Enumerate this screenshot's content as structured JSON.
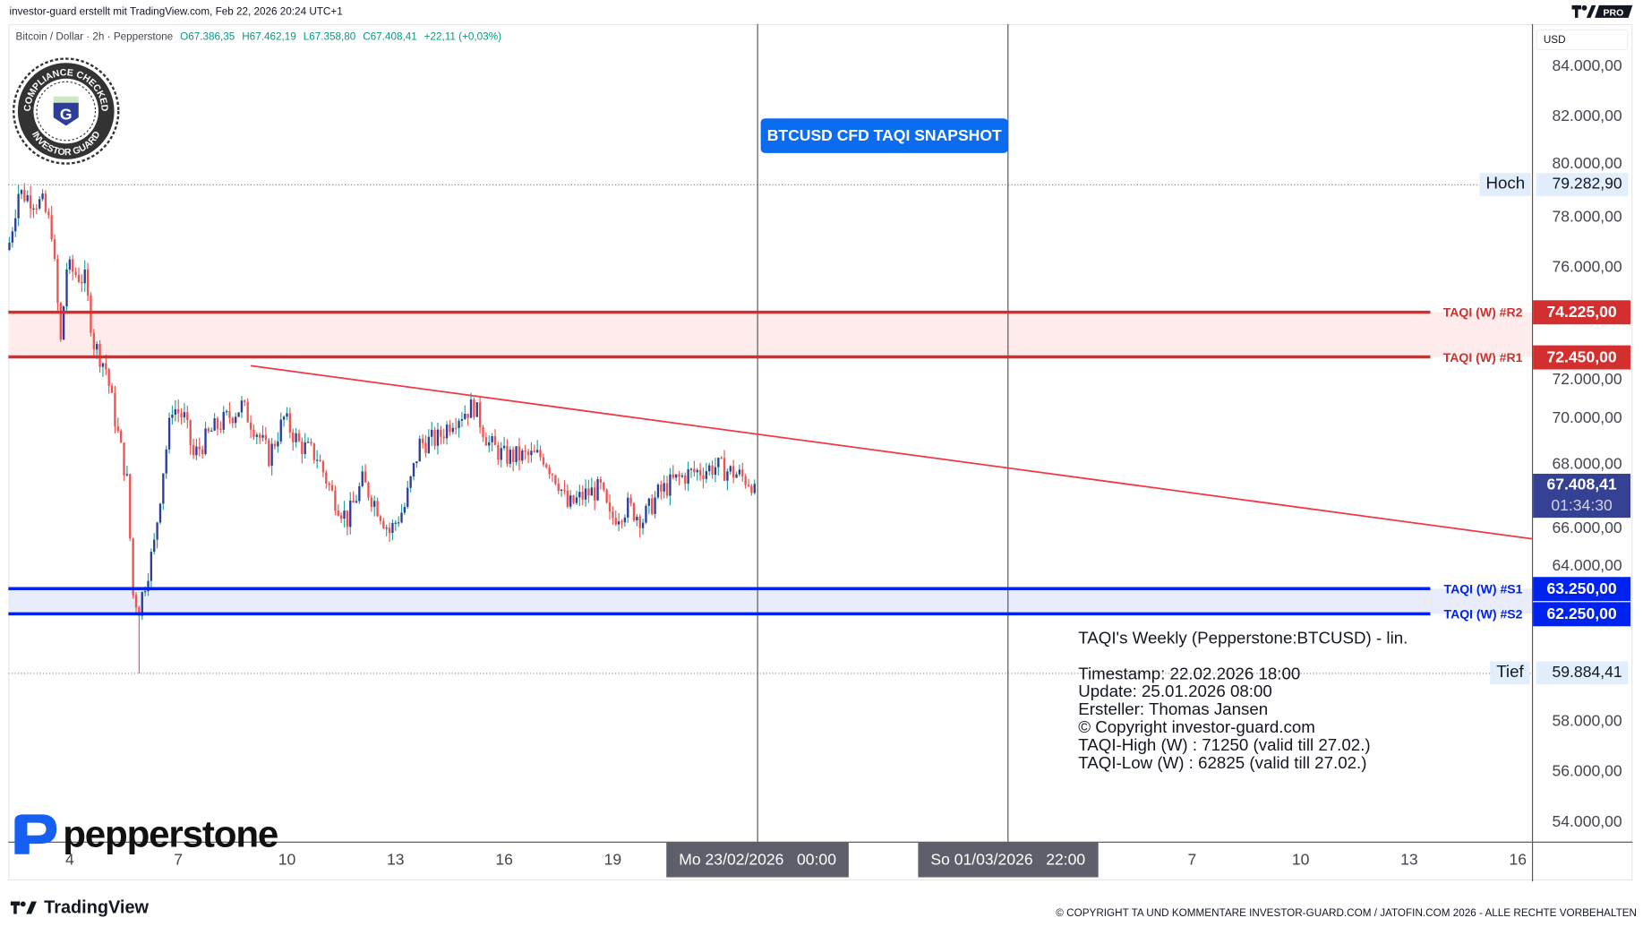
{
  "header": {
    "caption": "investor-guard erstellt mit TradingView.com, Feb 22, 2026 20:24 UTC+1",
    "badge": "PRO"
  },
  "legend": {
    "symbol": "Bitcoin / Dollar · 2h · Pepperstone",
    "open": "O67.386,35",
    "high": "H67.462,19",
    "low": "L67.358,80",
    "close": "C67.408,41",
    "change": "+22,11 (+0,03%)"
  },
  "currency": "USD",
  "compliance_badge": {
    "top_text": "COMPLIANCE CHECKED",
    "bottom_text": "INVESTOR GUARD",
    "letter": "G"
  },
  "snapshot_label": "BTCUSD CFD TAQI SNAPSHOT",
  "levels": {
    "r2": {
      "label": "TAQI (W) #R2",
      "value": "74.225,00",
      "price": 74225,
      "color": "#d32f2f"
    },
    "r1": {
      "label": "TAQI (W) #R1",
      "value": "72.450,00",
      "price": 72450,
      "color": "#d32f2f"
    },
    "s1": {
      "label": "TAQI (W) #S1",
      "value": "63.250,00",
      "price": 63250,
      "color": "#0022ee"
    },
    "s2": {
      "label": "TAQI (W) #S2",
      "value": "62.250,00",
      "price": 62250,
      "color": "#0022ee"
    }
  },
  "current": {
    "price_label": "67.408,41",
    "countdown": "01:34:30",
    "color": "#354192"
  },
  "high": {
    "tag": "Hoch",
    "value": "79.282,90",
    "price": 79282.9
  },
  "low": {
    "tag": "Tief",
    "value": "59.884,41",
    "price": 59884.41
  },
  "info": {
    "title": "TAQI's Weekly (Pepperstone:BTCUSD) - lin.",
    "lines": [
      "Timestamp: 22.02.2026 18:00",
      "Update: 25.01.2026 08:00",
      "Ersteller: Thomas Jansen",
      "© Copyright investor-guard.com",
      "TAQI-High (W) : 71250 (valid till 27.02.)",
      "TAQI-Low (W) : 62825 (valid till 27.02.)"
    ]
  },
  "time_axis": {
    "ticks": [
      {
        "label": "4",
        "date": "2026-02-04 00:00"
      },
      {
        "label": "7",
        "date": "2026-02-07 00:00"
      },
      {
        "label": "10",
        "date": "2026-02-10 00:00"
      },
      {
        "label": "13",
        "date": "2026-02-13 00:00"
      },
      {
        "label": "16",
        "date": "2026-02-16 00:00"
      },
      {
        "label": "19",
        "date": "2026-02-19 00:00"
      },
      {
        "label": "7",
        "date": "2026-03-07 00:00"
      },
      {
        "label": "10",
        "date": "2026-03-10 00:00"
      },
      {
        "label": "13",
        "date": "2026-03-13 00:00"
      },
      {
        "label": "16",
        "date": "2026-03-16 00:00"
      }
    ],
    "markers": [
      {
        "label": "Mo 23/02/2026   00:00",
        "date": "2026-02-23 00:00"
      },
      {
        "label": "So 01/03/2026   22:00",
        "date": "2026-03-01 22:00"
      }
    ]
  },
  "price_axis": {
    "ticks": [
      "84.000,00",
      "82.000,00",
      "80.000,00",
      "78.000,00",
      "76.000,00",
      "72.000,00",
      "70.000,00",
      "68.000,00",
      "66.000,00",
      "64.000,00",
      "58.000,00",
      "56.000,00",
      "54.000,00"
    ],
    "values": [
      84000,
      82000,
      80000,
      78000,
      76000,
      72000,
      70000,
      68000,
      66000,
      64000,
      58000,
      56000,
      54000
    ]
  },
  "chart_data": {
    "type": "candlestick",
    "symbol": "BTCUSD",
    "interval": "2h",
    "ylim": [
      53500,
      85500
    ],
    "xlim": [
      "2026-02-02 06:00",
      "2026-03-17 06:00"
    ],
    "grid": false,
    "colors": {
      "up": "#2e3d9a",
      "down": "#ef5350",
      "up_wick": "#22a39a"
    },
    "close_path": [
      [
        "2026-02-02 08:00",
        77000
      ],
      [
        "2026-02-02 14:00",
        79000
      ],
      [
        "2026-02-03 06:00",
        78500
      ],
      [
        "2026-02-03 12:00",
        77500
      ],
      [
        "2026-02-03 18:00",
        73000
      ],
      [
        "2026-02-03 22:00",
        76000
      ],
      [
        "2026-02-04 10:00",
        75500
      ],
      [
        "2026-02-04 16:00",
        73000
      ],
      [
        "2026-02-05 00:00",
        72000
      ],
      [
        "2026-02-05 06:00",
        70000
      ],
      [
        "2026-02-05 14:00",
        67500
      ],
      [
        "2026-02-05 18:00",
        63000
      ],
      [
        "2026-02-05 22:00",
        62500
      ],
      [
        "2026-02-06 08:00",
        65000
      ],
      [
        "2026-02-06 14:00",
        68000
      ],
      [
        "2026-02-06 20:00",
        70500
      ],
      [
        "2026-02-07 04:00",
        70000
      ],
      [
        "2026-02-07 10:00",
        68500
      ],
      [
        "2026-02-07 22:00",
        69500
      ],
      [
        "2026-02-08 08:00",
        70000
      ],
      [
        "2026-02-08 18:00",
        70500
      ],
      [
        "2026-02-09 04:00",
        69500
      ],
      [
        "2026-02-09 12:00",
        68500
      ],
      [
        "2026-02-09 22:00",
        70000
      ],
      [
        "2026-02-10 08:00",
        69000
      ],
      [
        "2026-02-10 20:00",
        68500
      ],
      [
        "2026-02-11 06:00",
        67000
      ],
      [
        "2026-02-11 16:00",
        66000
      ],
      [
        "2026-02-12 02:00",
        67500
      ],
      [
        "2026-02-12 12:00",
        66500
      ],
      [
        "2026-02-12 20:00",
        65500
      ],
      [
        "2026-02-13 06:00",
        66500
      ],
      [
        "2026-02-13 16:00",
        69000
      ],
      [
        "2026-02-14 04:00",
        69200
      ],
      [
        "2026-02-14 14:00",
        70000
      ],
      [
        "2026-02-15 04:00",
        70500
      ],
      [
        "2026-02-15 14:00",
        69000
      ],
      [
        "2026-02-16 00:00",
        68500
      ],
      [
        "2026-02-16 14:00",
        68500
      ],
      [
        "2026-02-17 02:00",
        68500
      ],
      [
        "2026-02-17 12:00",
        67500
      ],
      [
        "2026-02-17 18:00",
        66500
      ],
      [
        "2026-02-18 06:00",
        67000
      ],
      [
        "2026-02-18 16:00",
        67200
      ],
      [
        "2026-02-18 22:00",
        66000
      ],
      [
        "2026-02-19 10:00",
        66500
      ],
      [
        "2026-02-19 20:00",
        66000
      ],
      [
        "2026-02-20 06:00",
        67000
      ],
      [
        "2026-02-20 16:00",
        67500
      ],
      [
        "2026-02-21 02:00",
        67800
      ],
      [
        "2026-02-21 14:00",
        68000
      ],
      [
        "2026-02-21 20:00",
        68100
      ],
      [
        "2026-02-22 10:00",
        67800
      ],
      [
        "2026-02-22 22:00",
        67408.41
      ]
    ],
    "trendline": {
      "from": [
        "2026-02-09 00:00",
        72100
      ],
      "to": [
        "2026-03-16 14:00",
        65230
      ],
      "color": "#f23645"
    }
  },
  "logos": {
    "broker": "pepperstone",
    "platform": "TradingView"
  },
  "footer": {
    "copyright": "© COPYRIGHT TA UND KOMMENTARE INVESTOR-GUARD.COM / JATOFIN.COM 2026 - ALLE RECHTE VORBEHALTEN"
  }
}
